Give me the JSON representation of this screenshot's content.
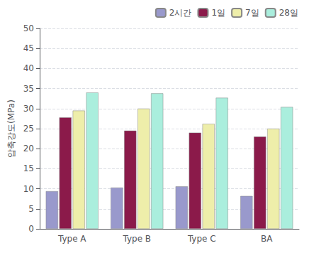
{
  "chart_data": {
    "type": "bar",
    "categories": [
      "Type A",
      "Type B",
      "Type C",
      "BA"
    ],
    "series": [
      {
        "name": "2시간",
        "color": "#9999CC",
        "values": [
          9.4,
          10.3,
          10.6,
          8.2
        ]
      },
      {
        "name": "1일",
        "color": "#8B1A4A",
        "values": [
          27.8,
          24.5,
          24.0,
          23.0
        ]
      },
      {
        "name": "7일",
        "color": "#EEEEAA",
        "values": [
          29.5,
          30.0,
          26.2,
          25.0
        ]
      },
      {
        "name": "28일",
        "color": "#AAEEDD",
        "values": [
          34.0,
          33.8,
          32.7,
          30.4
        ]
      }
    ],
    "ylabel": "압축강도(MPa)",
    "ylim": [
      0,
      50
    ],
    "yticks": [
      0,
      5,
      10,
      15,
      20,
      25,
      30,
      35,
      40,
      45,
      50
    ],
    "grid": true,
    "legend": "upper right"
  }
}
